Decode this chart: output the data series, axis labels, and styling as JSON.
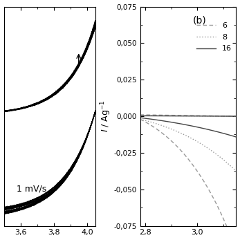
{
  "left_panel": {
    "annotation": "1 mV/s",
    "xlim": [
      3.5,
      4.05
    ],
    "xticks": [
      3.6,
      3.8,
      4.0
    ],
    "xticklabels": [
      "3,6",
      "3,8",
      "4,0"
    ],
    "num_cycles": 20,
    "upper_scale": 0.72,
    "lower_scale": 0.92,
    "upper_exp": 6.0,
    "lower_exp": 5.5
  },
  "right_panel": {
    "label": "(b)",
    "xlim": [
      2.78,
      3.15
    ],
    "ylim": [
      -0.075,
      0.075
    ],
    "xticks": [
      2.8,
      3.0
    ],
    "xticklabels": [
      "2,8",
      "3,0"
    ],
    "yticks": [
      -0.075,
      -0.05,
      -0.025,
      0.0,
      0.025,
      0.05,
      0.075
    ],
    "yticklabels": [
      "-0,075",
      "-0,050",
      "-0,025",
      "0,000",
      "0,025",
      "0,050",
      "0,075"
    ],
    "legend_labels": [
      "6",
      "8",
      "16"
    ]
  },
  "bg_color": "#ffffff",
  "plot_bg": "#ffffff",
  "text_color": "#333333"
}
